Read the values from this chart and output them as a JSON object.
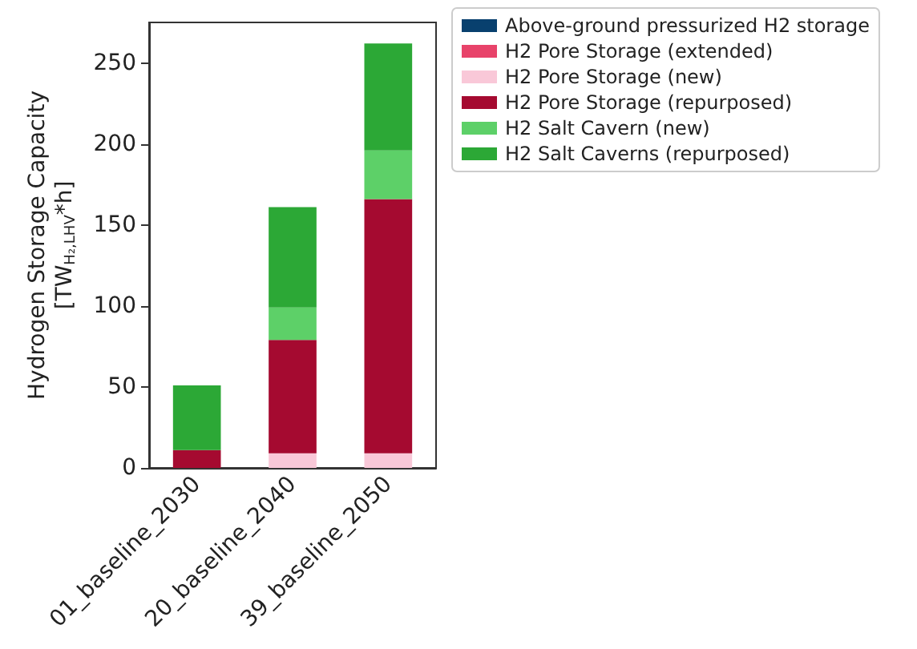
{
  "chart_data": {
    "type": "bar",
    "stacked": true,
    "ylabel": "Hydrogen Storage Capacity\n[TW$_{H₂,LHV}$*h]",
    "categories": [
      "01_baseline_2030",
      "20_baseline_2040",
      "39_baseline_2050"
    ],
    "series": [
      {
        "name": "Above-ground pressurized H2 storage",
        "color": "#08406e",
        "values": [
          0,
          0,
          0
        ]
      },
      {
        "name": "H2 Pore Storage (extended)",
        "color": "#e8436a",
        "values": [
          0,
          0,
          0
        ]
      },
      {
        "name": "H2 Pore Storage (new)",
        "color": "#f9c8d8",
        "values": [
          0,
          9,
          9
        ]
      },
      {
        "name": "H2 Pore Storage (repurposed)",
        "color": "#a50a30",
        "values": [
          11,
          70,
          157
        ]
      },
      {
        "name": "H2 Salt Cavern (new)",
        "color": "#5dd068",
        "values": [
          0,
          20,
          30
        ]
      },
      {
        "name": "H2 Salt Caverns (repurposed)",
        "color": "#2ca836",
        "values": [
          40,
          62,
          66
        ]
      }
    ],
    "ylim": [
      0,
      275
    ],
    "yticks": [
      0,
      50,
      100,
      150,
      200,
      250
    ],
    "grid": false,
    "legend": "right"
  }
}
